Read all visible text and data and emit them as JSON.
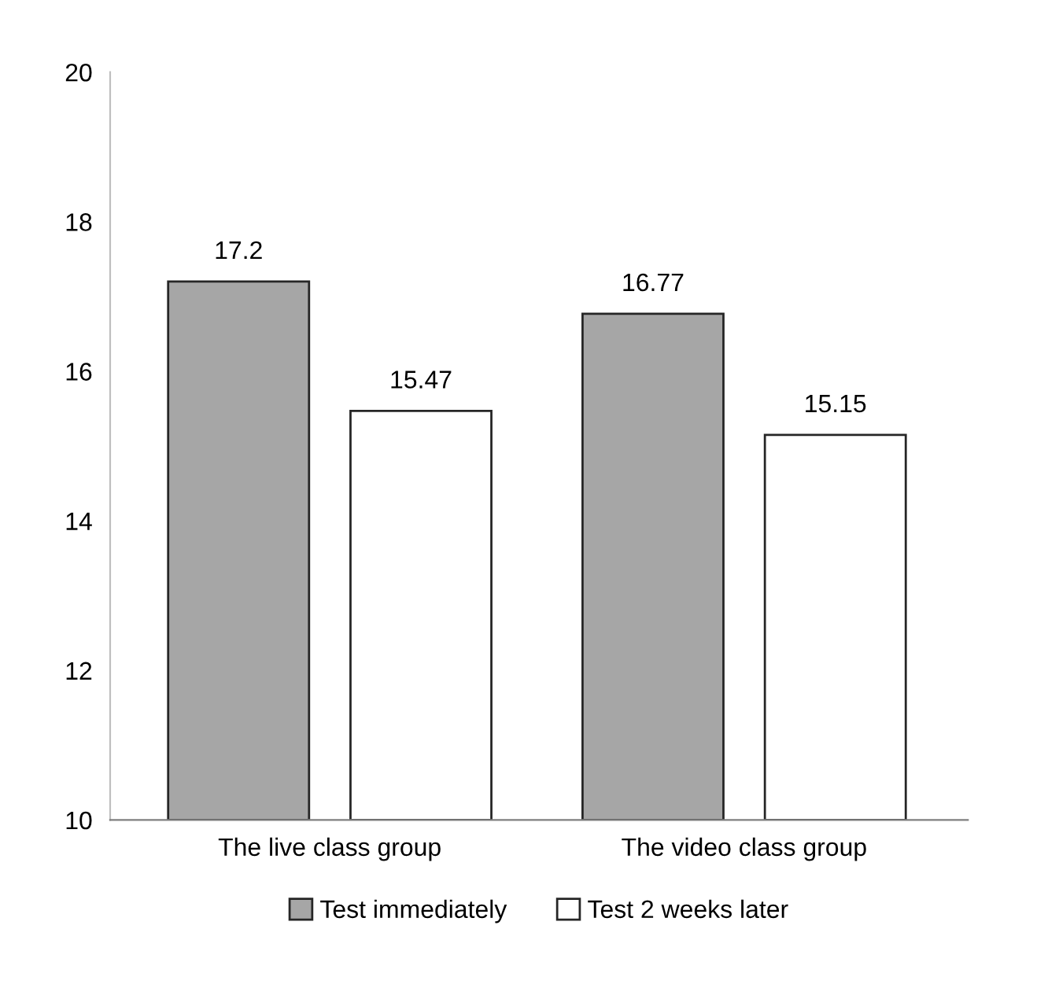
{
  "chart_data": {
    "type": "bar",
    "categories": [
      "The live class group",
      "The video class group"
    ],
    "series": [
      {
        "name": "Test immediately",
        "color": "#a6a6a6",
        "values": [
          17.2,
          16.77
        ]
      },
      {
        "name": "Test 2 weeks later",
        "color": "#ffffff",
        "values": [
          15.47,
          15.15
        ]
      }
    ],
    "ylim": [
      10,
      20
    ],
    "yticks": [
      10,
      12,
      14,
      16,
      18,
      20
    ],
    "data_labels": true,
    "grid": false,
    "legend": "bottom"
  }
}
